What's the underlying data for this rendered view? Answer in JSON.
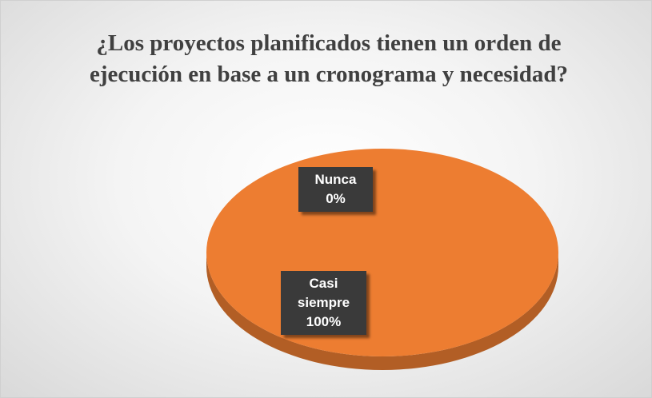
{
  "chart_data": {
    "type": "pie",
    "title": "¿Los proyectos planificados tienen un orden de ejecución en base a un cronograma y necesidad?",
    "categories": [
      "Nunca",
      "Casi siempre"
    ],
    "values": [
      0,
      100
    ],
    "value_labels": [
      "0%",
      "100%"
    ],
    "colors": [
      "#4472c4",
      "#ed7d31"
    ]
  }
}
